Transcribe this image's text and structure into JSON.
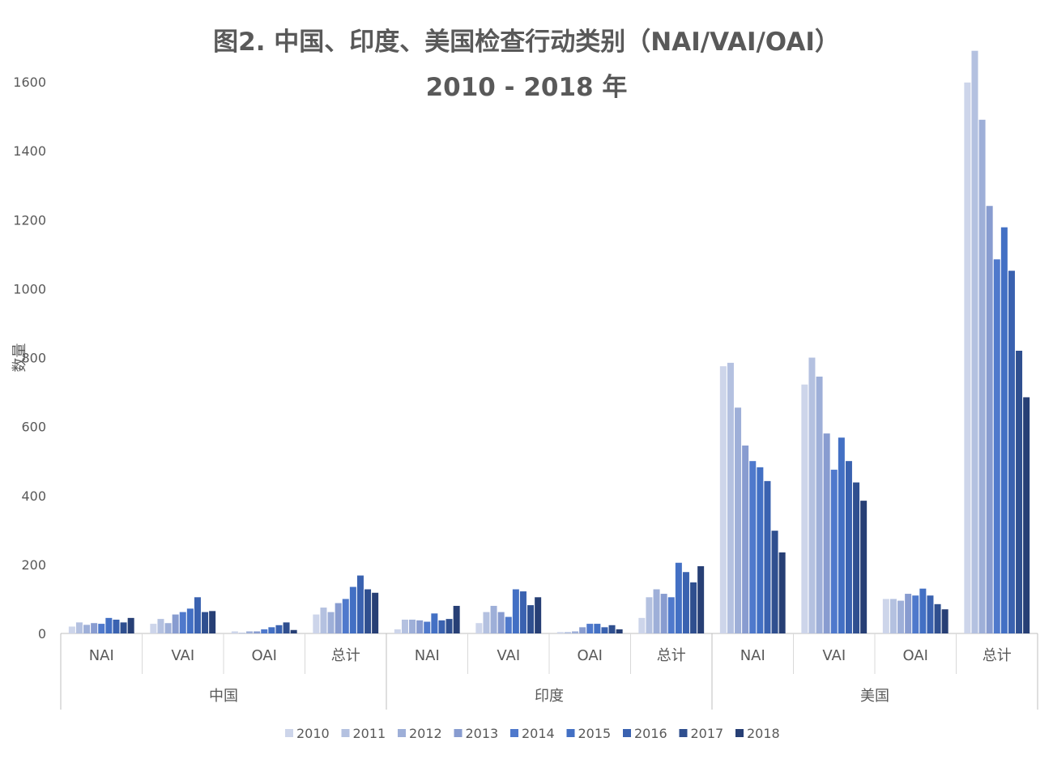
{
  "chart_data": {
    "type": "bar",
    "title": [
      "图2. 中国、印度、美国检查行动类别（NAI/VAI/OAI）",
      "2010 - 2018 年"
    ],
    "ylabel": "数量",
    "xlabel": "",
    "ylim": [
      0,
      1700
    ],
    "yticks": [
      0,
      200,
      400,
      600,
      800,
      1000,
      1200,
      1400,
      1600
    ],
    "grid": false,
    "legend": "bottom",
    "groups": [
      "中国",
      "印度",
      "美国"
    ],
    "categories": [
      "NAI",
      "VAI",
      "OAI",
      "总计"
    ],
    "series": [
      {
        "name": "2010",
        "color": "#CDD5EA",
        "values": [
          [
            20,
            28,
            6,
            55
          ],
          [
            12,
            30,
            4,
            45
          ],
          [
            775,
            722,
            100,
            1598
          ]
        ]
      },
      {
        "name": "2011",
        "color": "#B4C1E0",
        "values": [
          [
            32,
            42,
            2,
            75
          ],
          [
            40,
            62,
            4,
            105
          ],
          [
            785,
            800,
            100,
            1690
          ]
        ]
      },
      {
        "name": "2012",
        "color": "#9EAFD8",
        "values": [
          [
            25,
            30,
            6,
            62
          ],
          [
            40,
            80,
            6,
            128
          ],
          [
            655,
            745,
            95,
            1490
          ]
        ]
      },
      {
        "name": "2013",
        "color": "#889CD0",
        "values": [
          [
            30,
            55,
            6,
            88
          ],
          [
            38,
            62,
            18,
            115
          ],
          [
            545,
            580,
            115,
            1240
          ]
        ]
      },
      {
        "name": "2014",
        "color": "#4F79CC",
        "values": [
          [
            28,
            62,
            12,
            100
          ],
          [
            34,
            48,
            28,
            105
          ],
          [
            500,
            475,
            110,
            1085
          ]
        ]
      },
      {
        "name": "2015",
        "color": "#4370C4",
        "values": [
          [
            45,
            72,
            18,
            135
          ],
          [
            58,
            128,
            28,
            205
          ],
          [
            482,
            568,
            130,
            1178
          ]
        ]
      },
      {
        "name": "2016",
        "color": "#3A62B0",
        "values": [
          [
            40,
            105,
            24,
            168
          ],
          [
            38,
            122,
            18,
            178
          ],
          [
            442,
            500,
            110,
            1052
          ]
        ]
      },
      {
        "name": "2017",
        "color": "#2F4F8F",
        "values": [
          [
            32,
            62,
            32,
            128
          ],
          [
            42,
            82,
            24,
            148
          ],
          [
            298,
            438,
            85,
            820
          ]
        ]
      },
      {
        "name": "2018",
        "color": "#273F75",
        "values": [
          [
            45,
            65,
            10,
            118
          ],
          [
            80,
            105,
            12,
            195
          ],
          [
            235,
            385,
            70,
            685
          ]
        ]
      }
    ]
  }
}
